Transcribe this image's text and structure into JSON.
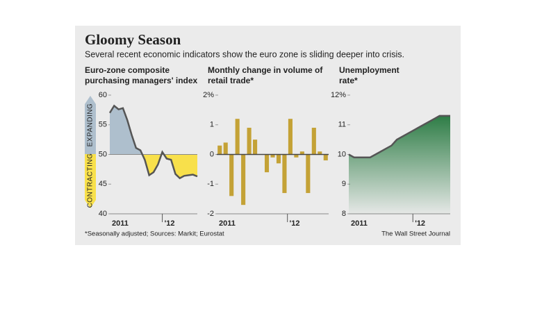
{
  "title": "Gloomy Season",
  "subtitle": "Several recent economic indicators show the euro zone is sliding deeper into crisis.",
  "note": "*Seasonally adjusted; Sources: Markit; Eurostat",
  "source": "The Wall Street Journal",
  "chart_data": [
    {
      "type": "line",
      "title": [
        "Euro-zone composite",
        "purchasing managers' index"
      ],
      "annotations": [
        "EXPANDING",
        "CONTRACTING"
      ],
      "categories": [
        "2011",
        null,
        null,
        null,
        null,
        null,
        null,
        null,
        null,
        null,
        null,
        null,
        "'12",
        null,
        null,
        null,
        null,
        null,
        null,
        null,
        null
      ],
      "values": [
        57.0,
        58.2,
        57.6,
        57.8,
        55.8,
        53.3,
        51.1,
        50.7,
        49.1,
        46.5,
        47.0,
        48.3,
        50.4,
        49.3,
        49.1,
        46.7,
        46.0,
        46.4,
        46.5,
        46.6,
        46.3
      ],
      "baseline": 50,
      "color": "#555555",
      "fill_above": "#aebfcd",
      "fill_below": "#f8e04b",
      "ylim": [
        40,
        60
      ],
      "yticks": [
        40,
        45,
        50,
        55,
        60
      ]
    },
    {
      "type": "bar",
      "title": [
        "Monthly change in volume of",
        "retail trade*"
      ],
      "categories": [
        "2011",
        null,
        null,
        null,
        null,
        null,
        null,
        null,
        null,
        null,
        null,
        null,
        "'12",
        null,
        null,
        null,
        null,
        null,
        null
      ],
      "values": [
        0.3,
        0.4,
        -1.4,
        1.2,
        -1.7,
        0.9,
        0.5,
        0,
        -0.6,
        -0.1,
        -0.3,
        -1.3,
        1.2,
        -0.1,
        0.1,
        -1.3,
        0.9,
        0.1,
        -0.2
      ],
      "color": "#c4a236",
      "ylim": [
        -2,
        2
      ],
      "yticks": [
        -2,
        -1,
        0,
        1,
        {
          "value": 2,
          "label": "2%"
        }
      ]
    },
    {
      "type": "area",
      "title": [
        "Unemployment",
        "rate*"
      ],
      "categories": [
        "2011",
        null,
        null,
        null,
        null,
        null,
        null,
        null,
        null,
        null,
        null,
        null,
        "'12",
        null,
        null,
        null,
        null,
        null,
        null,
        null
      ],
      "values": [
        10.0,
        9.9,
        9.9,
        9.9,
        9.9,
        10.0,
        10.1,
        10.2,
        10.3,
        10.5,
        10.6,
        10.7,
        10.8,
        10.9,
        11.0,
        11.1,
        11.2,
        11.3,
        11.3,
        11.3
      ],
      "color": "#555555",
      "fill": "#2e7d46",
      "ylim": [
        8,
        12
      ],
      "yticks": [
        8,
        9,
        10,
        11,
        {
          "value": 12,
          "label": "12%"
        }
      ]
    }
  ]
}
